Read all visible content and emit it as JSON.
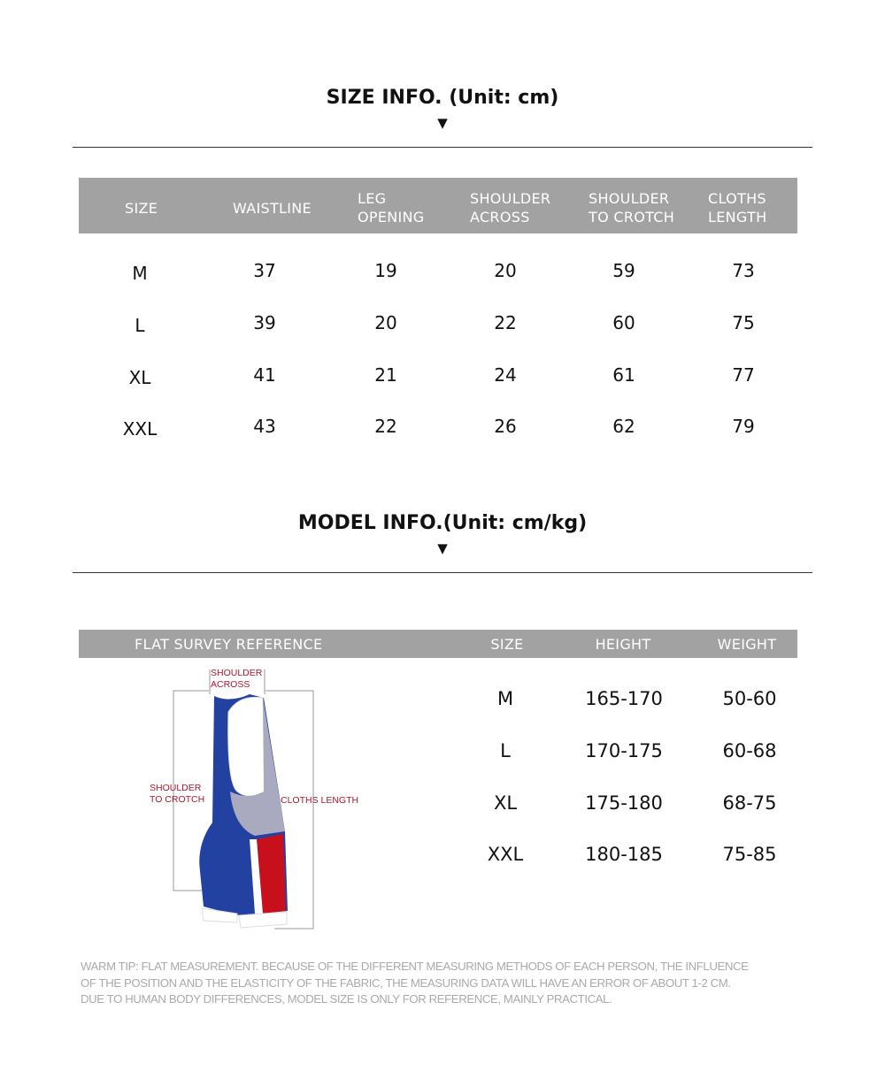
{
  "size_info": {
    "title": "SIZE INFO. (Unit: cm)",
    "headers": [
      "SIZE",
      "WAISTLINE",
      "LEG\nOPENING",
      "SHOULDER\nACROSS",
      "SHOULDER\nTO CROTCH",
      "CLOTHS\nLENGTH"
    ],
    "rows": [
      [
        "M",
        "37",
        "19",
        "20",
        "59",
        "73"
      ],
      [
        "L",
        "39",
        "20",
        "22",
        "60",
        "75"
      ],
      [
        "XL",
        "41",
        "21",
        "24",
        "61",
        "77"
      ],
      [
        "XXL",
        "43",
        "22",
        "26",
        "62",
        "79"
      ]
    ]
  },
  "model_info": {
    "title": "MODEL INFO.(Unit: cm/kg)",
    "headers": [
      "FLAT SURVEY REFERENCE",
      "SIZE",
      "HEIGHT",
      "WEIGHT"
    ],
    "rows": [
      [
        "M",
        "165-170",
        "50-60"
      ],
      [
        "L",
        "170-175",
        "60-68"
      ],
      [
        "XL",
        "175-180",
        "68-75"
      ],
      [
        "XXL",
        "180-185",
        "75-85"
      ]
    ]
  },
  "diagram_labels": {
    "shoulder_across": "SHOULDER\nACROSS",
    "shoulder_to_crotch": "SHOULDER\nTO CROTCH",
    "cloths_length": "CLOTHS LENGTH"
  },
  "colors": {
    "header_bg": "#a2a2a2",
    "garment_blue": "#2341a0",
    "garment_red": "#c8101c",
    "garment_gray": "#a9aabf",
    "label_red": "#b0172b"
  },
  "warm_tip": [
    "WARM TIP: FLAT MEASUREMENT. BECAUSE OF THE DIFFERENT MEASURING METHODS OF EACH PERSON, THE INFLUENCE",
    "OF THE POSITION AND THE ELASTICITY OF THE FABRIC, THE MEASURING DATA WILL HAVE AN ERROR OF ABOUT 1-2 CM.",
    "DUE TO HUMAN BODY DIFFERENCES, MODEL SIZE IS ONLY FOR REFERENCE, MAINLY PRACTICAL."
  ],
  "arrow_glyph": "▼"
}
